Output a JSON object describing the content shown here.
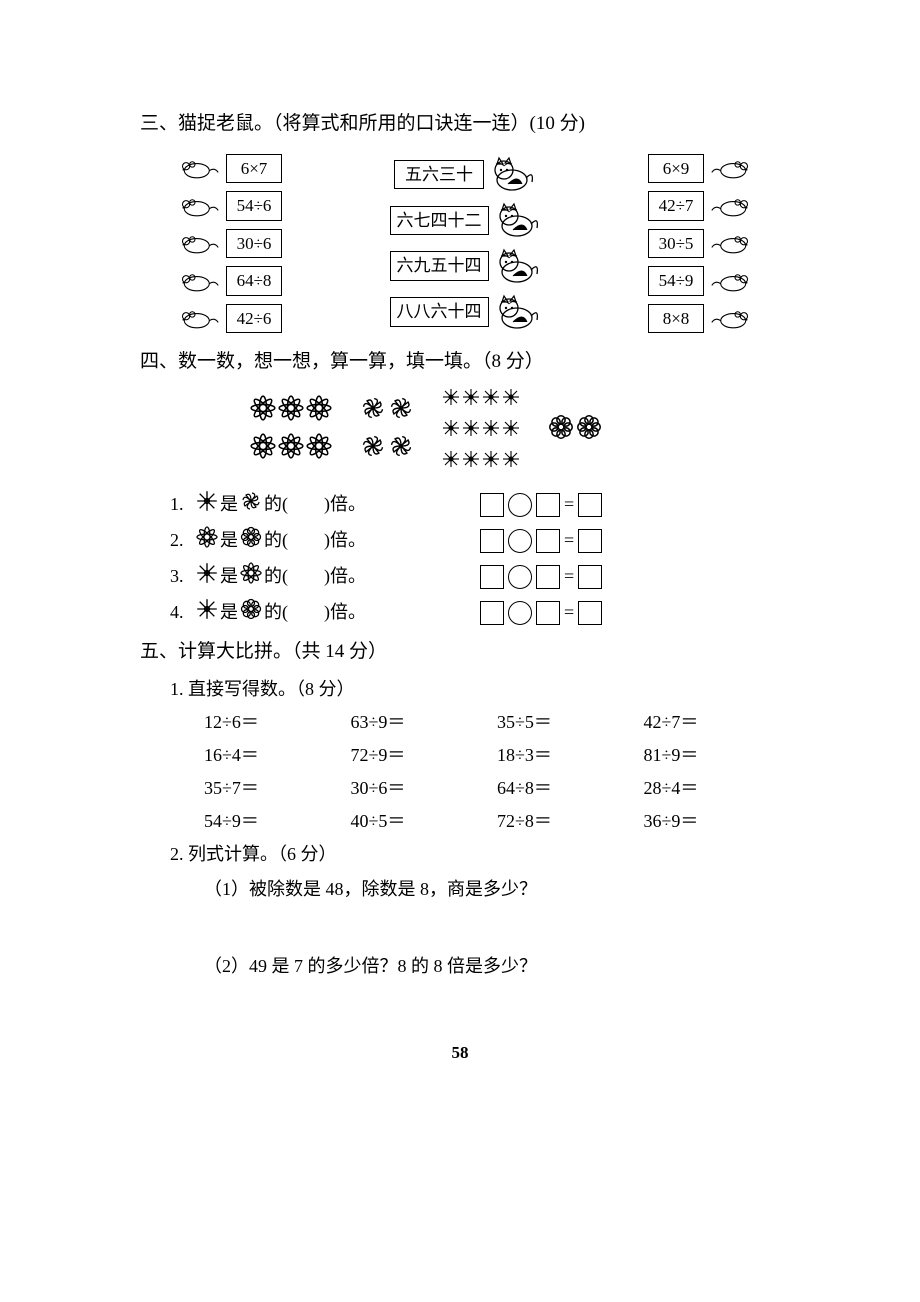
{
  "section3": {
    "title": "三、猫捉老鼠。（将算式和所用的口诀连一连）(10 分)",
    "left_equations": [
      "6×7",
      "54÷6",
      "30÷6",
      "64÷8",
      "42÷6"
    ],
    "mnemonics": [
      "五六三十",
      "六七四十二",
      "六九五十四",
      "八八六十四"
    ],
    "right_equations": [
      "6×9",
      "42÷7",
      "30÷5",
      "54÷9",
      "8×8"
    ]
  },
  "section4": {
    "title": "四、数一数，想一想，算一算，填一填。（8 分）",
    "groups": {
      "g1": {
        "rows": 2,
        "cols": 3,
        "type": "star8"
      },
      "g2": {
        "rows": 2,
        "cols": 2,
        "type": "swirl"
      },
      "g3": {
        "rows": 3,
        "cols": 4,
        "type": "star8s"
      },
      "g4": {
        "count": 2,
        "type": "rosette"
      }
    },
    "questions": [
      {
        "num": "1.",
        "a": "star8s",
        "b": "swirl",
        "tail": "的(　　)倍。"
      },
      {
        "num": "2.",
        "a": "star8",
        "b": "rosette",
        "tail": "的(　　)倍。"
      },
      {
        "num": "3.",
        "a": "star8s",
        "b": "star8",
        "tail": "的(　　)倍。"
      },
      {
        "num": "4.",
        "a": "star8s",
        "b": "rosette",
        "tail": "的(　　)倍。"
      }
    ],
    "is_text": "是"
  },
  "section5": {
    "title": "五、计算大比拼。（共 14 分）",
    "sub1_title": "1. 直接写得数。（8 分）",
    "calc": [
      "12÷6＝",
      "63÷9＝",
      "35÷5＝",
      "42÷7＝",
      "16÷4＝",
      "72÷9＝",
      "18÷3＝",
      "81÷9＝",
      "35÷7＝",
      "30÷6＝",
      "64÷8＝",
      "28÷4＝",
      "54÷9＝",
      "40÷5＝",
      "72÷8＝",
      "36÷9＝"
    ],
    "sub2_title": "2. 列式计算。（6 分）",
    "q1": "（1）被除数是 48，除数是 8，商是多少？",
    "q2": "（2）49 是 7 的多少倍？8 的 8 倍是多少？"
  },
  "page": "58"
}
